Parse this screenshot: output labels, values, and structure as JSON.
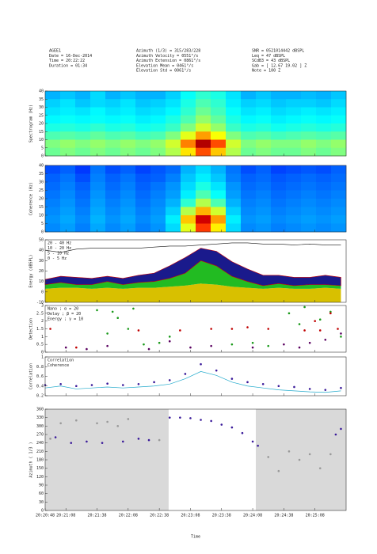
{
  "header": {
    "left": [
      "AGEE1",
      "Date     = 16-Dec-2014",
      "Time     = 20:22:22",
      "Duration = 01:34"
    ],
    "middle": [
      "Azimuth (1/3)      = 315/283/228",
      "Azimuth Velocity   = 0551°/s",
      "Azimuth Extension  = 0861°/s",
      "Elevation Mean     = 0461°/s",
      "Elevation Std      = 0061°/s"
    ],
    "right": [
      "SNR   = 0521014442 dBSPL",
      "Leq   = 47 dBSPL",
      "SCdB3 = 43 dBSPL",
      "Gab   = [ 12.67 19.02 ] Z",
      "Note  = 100 Z"
    ]
  },
  "chart_data": [
    {
      "type": "heatmap",
      "ylabel": "Spectrogram (Hz)",
      "xlim": [
        0,
        290
      ],
      "ylim": [
        0,
        40
      ],
      "yticks": [
        0,
        5,
        10,
        15,
        20,
        25,
        30,
        35,
        40
      ],
      "grid": [
        [
          0.3,
          0.32,
          0.3,
          0.34,
          0.3,
          0.32,
          0.3,
          0.3,
          0.33,
          0.38,
          0.42,
          0.4,
          0.35,
          0.3,
          0.32,
          0.3,
          0.3,
          0.31,
          0.3,
          0.32
        ],
        [
          0.33,
          0.35,
          0.32,
          0.34,
          0.33,
          0.35,
          0.32,
          0.33,
          0.35,
          0.4,
          0.45,
          0.42,
          0.36,
          0.33,
          0.34,
          0.32,
          0.33,
          0.33,
          0.32,
          0.34
        ],
        [
          0.35,
          0.36,
          0.35,
          0.37,
          0.35,
          0.36,
          0.34,
          0.35,
          0.37,
          0.42,
          0.48,
          0.44,
          0.38,
          0.35,
          0.36,
          0.34,
          0.35,
          0.36,
          0.35,
          0.36
        ],
        [
          0.37,
          0.38,
          0.37,
          0.38,
          0.37,
          0.38,
          0.36,
          0.37,
          0.4,
          0.45,
          0.52,
          0.47,
          0.4,
          0.37,
          0.38,
          0.36,
          0.37,
          0.38,
          0.37,
          0.38
        ],
        [
          0.4,
          0.41,
          0.4,
          0.42,
          0.4,
          0.41,
          0.39,
          0.4,
          0.43,
          0.5,
          0.58,
          0.52,
          0.43,
          0.4,
          0.41,
          0.39,
          0.4,
          0.41,
          0.4,
          0.41
        ],
        [
          0.45,
          0.46,
          0.45,
          0.47,
          0.45,
          0.46,
          0.44,
          0.45,
          0.5,
          0.6,
          0.72,
          0.62,
          0.5,
          0.45,
          0.46,
          0.44,
          0.45,
          0.46,
          0.45,
          0.46
        ],
        [
          0.5,
          0.52,
          0.5,
          0.52,
          0.5,
          0.52,
          0.5,
          0.52,
          0.58,
          0.75,
          0.95,
          0.8,
          0.58,
          0.5,
          0.52,
          0.5,
          0.5,
          0.52,
          0.5,
          0.52
        ],
        [
          0.48,
          0.5,
          0.48,
          0.5,
          0.48,
          0.5,
          0.48,
          0.5,
          0.55,
          0.65,
          0.8,
          0.68,
          0.55,
          0.48,
          0.5,
          0.48,
          0.48,
          0.5,
          0.48,
          0.5
        ]
      ]
    },
    {
      "type": "heatmap",
      "ylabel": "Coherence (Hz)",
      "xlim": [
        0,
        290
      ],
      "ylim": [
        0,
        40
      ],
      "yticks": [
        0,
        5,
        10,
        15,
        20,
        25,
        30,
        35,
        40
      ],
      "grid": [
        [
          0.2,
          0.22,
          0.18,
          0.24,
          0.2,
          0.22,
          0.19,
          0.21,
          0.23,
          0.3,
          0.34,
          0.3,
          0.24,
          0.2,
          0.22,
          0.19,
          0.2,
          0.21,
          0.2,
          0.22
        ],
        [
          0.22,
          0.24,
          0.2,
          0.25,
          0.22,
          0.24,
          0.21,
          0.22,
          0.25,
          0.32,
          0.36,
          0.32,
          0.25,
          0.22,
          0.23,
          0.21,
          0.22,
          0.23,
          0.22,
          0.23
        ],
        [
          0.23,
          0.25,
          0.22,
          0.26,
          0.23,
          0.25,
          0.22,
          0.24,
          0.27,
          0.34,
          0.4,
          0.35,
          0.27,
          0.23,
          0.24,
          0.22,
          0.23,
          0.24,
          0.23,
          0.24
        ],
        [
          0.24,
          0.26,
          0.23,
          0.27,
          0.24,
          0.26,
          0.23,
          0.25,
          0.28,
          0.36,
          0.45,
          0.38,
          0.28,
          0.24,
          0.25,
          0.23,
          0.24,
          0.25,
          0.24,
          0.25
        ],
        [
          0.25,
          0.27,
          0.24,
          0.28,
          0.25,
          0.27,
          0.24,
          0.26,
          0.3,
          0.42,
          0.55,
          0.45,
          0.3,
          0.25,
          0.26,
          0.24,
          0.25,
          0.26,
          0.25,
          0.26
        ],
        [
          0.26,
          0.28,
          0.25,
          0.29,
          0.26,
          0.28,
          0.25,
          0.27,
          0.33,
          0.55,
          0.7,
          0.58,
          0.33,
          0.26,
          0.27,
          0.25,
          0.26,
          0.27,
          0.26,
          0.27
        ],
        [
          0.27,
          0.29,
          0.26,
          0.3,
          0.27,
          0.29,
          0.26,
          0.28,
          0.36,
          0.68,
          0.92,
          0.72,
          0.36,
          0.27,
          0.28,
          0.26,
          0.27,
          0.28,
          0.27,
          0.28
        ],
        [
          0.26,
          0.28,
          0.25,
          0.29,
          0.26,
          0.28,
          0.25,
          0.27,
          0.34,
          0.6,
          0.82,
          0.64,
          0.34,
          0.26,
          0.27,
          0.25,
          0.26,
          0.27,
          0.26,
          0.27
        ]
      ]
    },
    {
      "type": "area",
      "ylabel": "Energy (dBSPL)",
      "xlim": [
        0,
        290
      ],
      "ylim": [
        -10,
        50
      ],
      "yticks": [
        -10,
        0,
        10,
        20,
        30,
        40,
        50
      ],
      "x": [
        0,
        15,
        30,
        45,
        60,
        75,
        90,
        105,
        120,
        135,
        150,
        165,
        180,
        195,
        210,
        225,
        240,
        255,
        270,
        285
      ],
      "line_series": [
        {
          "name": "20 - 40 Hz",
          "color": "#111111",
          "values": [
            40,
            38,
            41,
            42,
            42,
            42,
            42,
            43,
            44,
            44,
            45,
            46,
            47,
            47,
            46,
            46,
            45,
            46,
            45,
            45
          ]
        }
      ],
      "series": [
        {
          "name": "0 - 5 Hz",
          "color": "#d8c000",
          "values": [
            3,
            4,
            4,
            3,
            4,
            3,
            4,
            4,
            5,
            6,
            8,
            7,
            5,
            4,
            3,
            4,
            3,
            3,
            4,
            3
          ]
        },
        {
          "name": "5 - 10 Hz",
          "color": "#22bb22",
          "values": [
            4,
            5,
            3,
            4,
            6,
            4,
            5,
            6,
            8,
            12,
            22,
            18,
            10,
            6,
            3,
            4,
            3,
            4,
            3,
            3
          ]
        },
        {
          "name": "10 - 20 Hz",
          "color": "#1a1a8c",
          "edge_color": "#cc0000",
          "values": [
            5,
            6,
            7,
            6,
            5,
            6,
            7,
            8,
            12,
            15,
            12,
            14,
            14,
            12,
            10,
            8,
            8,
            7,
            9,
            8
          ]
        }
      ]
    },
    {
      "type": "scatter",
      "ylabel": "Detection",
      "xlim": [
        0,
        290
      ],
      "ylim": [
        0,
        3
      ],
      "yticks": [
        0,
        0.5,
        1,
        1.5,
        2,
        2.5,
        3
      ],
      "series": [
        {
          "name": "Nano ; α = 20",
          "color": "#1a9a1a",
          "x": [
            50,
            60,
            65,
            70,
            80,
            85,
            95,
            110,
            120,
            180,
            200,
            215,
            235,
            245,
            250,
            265,
            275,
            285
          ],
          "values": [
            2.7,
            1.2,
            2.6,
            2.2,
            1.5,
            2.8,
            0.5,
            0.6,
            1.0,
            0.5,
            0.6,
            0.4,
            2.5,
            1.8,
            2.9,
            2.1,
            2.6,
            1.0
          ]
        },
        {
          "name": "Delay ; β = 20",
          "color": "#c00000",
          "x": [
            5,
            30,
            90,
            130,
            160,
            180,
            195,
            215,
            250,
            260,
            265,
            275,
            282
          ],
          "values": [
            1.5,
            0.3,
            1.4,
            1.4,
            1.5,
            1.5,
            1.6,
            1.5,
            1.4,
            2.0,
            1.4,
            2.5,
            1.5
          ]
        },
        {
          "name": "Energy ; γ = 10",
          "color": "#5a0060",
          "x": [
            20,
            40,
            60,
            100,
            120,
            140,
            160,
            200,
            230,
            245,
            255,
            270,
            285
          ],
          "values": [
            0.3,
            0.2,
            0.4,
            0.2,
            0.7,
            0.3,
            0.4,
            0.3,
            0.5,
            0.3,
            0.6,
            0.8,
            1.2
          ]
        }
      ]
    },
    {
      "type": "scatter",
      "ylabel": "Correlation",
      "xlim": [
        0,
        290
      ],
      "ylim": [
        0.2,
        1
      ],
      "yticks": [
        0.2,
        0.4,
        0.6,
        0.8,
        1
      ],
      "series": [
        {
          "name": "Correlation",
          "color": "#3a1a9a",
          "x": [
            0,
            15,
            30,
            45,
            60,
            75,
            90,
            105,
            120,
            135,
            150,
            165,
            180,
            195,
            210,
            225,
            240,
            255,
            270,
            285
          ],
          "values": [
            0.42,
            0.44,
            0.4,
            0.42,
            0.45,
            0.42,
            0.44,
            0.48,
            0.52,
            0.65,
            0.85,
            0.72,
            0.55,
            0.48,
            0.44,
            0.4,
            0.38,
            0.34,
            0.32,
            0.36
          ]
        },
        {
          "name": "Coherence",
          "color": "#22aacc",
          "style": "line",
          "x": [
            0,
            15,
            30,
            45,
            60,
            75,
            90,
            105,
            120,
            135,
            150,
            165,
            180,
            195,
            210,
            225,
            240,
            255,
            270,
            285
          ],
          "values": [
            0.36,
            0.4,
            0.34,
            0.36,
            0.38,
            0.36,
            0.38,
            0.4,
            0.44,
            0.55,
            0.7,
            0.62,
            0.48,
            0.4,
            0.36,
            0.32,
            0.3,
            0.28,
            0.27,
            0.3
          ]
        }
      ]
    },
    {
      "type": "scatter",
      "ylabel": "Azimuth ( 1/3 )",
      "xlabel": "Time",
      "xlim": [
        0,
        290
      ],
      "ylim": [
        0,
        360
      ],
      "yticks": [
        0,
        30,
        60,
        90,
        120,
        150,
        180,
        210,
        240,
        270,
        300,
        330,
        360
      ],
      "xticks": [
        {
          "value": 0,
          "label": "20:20:48"
        },
        {
          "value": 20,
          "label": "20:21:08"
        },
        {
          "value": 50,
          "label": "20:21:38"
        },
        {
          "value": 80,
          "label": "20:22:08"
        },
        {
          "value": 110,
          "label": "20:22:38"
        },
        {
          "value": 140,
          "label": "20:23:08"
        },
        {
          "value": 170,
          "label": "20:23:38"
        },
        {
          "value": 200,
          "label": "20:24:08"
        },
        {
          "value": 230,
          "label": "20:24:38"
        },
        {
          "value": 260,
          "label": "20:25:08"
        }
      ],
      "detection_window": [
        119,
        203
      ],
      "shade_color": "#d9d9d9",
      "series": [
        {
          "name": "Detected",
          "color": "#3a1a9a",
          "x": [
            10,
            25,
            40,
            55,
            75,
            90,
            100,
            120,
            130,
            140,
            150,
            160,
            170,
            180,
            190,
            200,
            205,
            280,
            285
          ],
          "values": [
            260,
            240,
            245,
            240,
            245,
            255,
            250,
            330,
            330,
            328,
            322,
            318,
            305,
            295,
            275,
            245,
            230,
            270,
            290
          ]
        },
        {
          "name": "Other",
          "color": "#999999",
          "x": [
            5,
            15,
            30,
            50,
            60,
            70,
            80,
            110,
            215,
            225,
            235,
            245,
            255,
            265,
            275
          ],
          "values": [
            255,
            310,
            320,
            310,
            315,
            300,
            325,
            250,
            190,
            140,
            210,
            180,
            200,
            150,
            200
          ]
        }
      ]
    }
  ]
}
